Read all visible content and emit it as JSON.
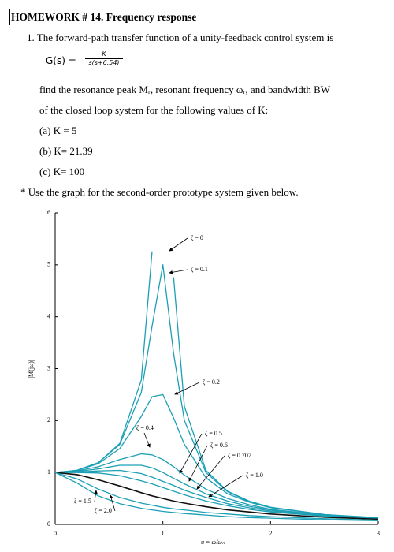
{
  "document": {
    "title": "HOMEWORK # 14. Frequency response",
    "problem": "1.  The forward-path transfer function of a unity-feedback control system is",
    "formula_lhs": "G(s) =",
    "formula_num": "K",
    "formula_den": "s(s+6.54)",
    "line1": "find the resonance peak Mᵣ, resonant frequency ωᵣ, and bandwidth BW",
    "line2": "of the closed loop system for the following values of K:",
    "case_a": "(a) K = 5",
    "case_b": "(b) K= 21.39",
    "case_c": "(c) K= 100",
    "note": "* Use the graph for the second-order prototype system given below."
  },
  "chart_data": {
    "type": "line",
    "xlabel": "u = ω/ωₙ",
    "ylabel": "|M(jω)|",
    "xlim": [
      0,
      3
    ],
    "ylim": [
      0,
      6
    ],
    "xticks": [
      0,
      1,
      2,
      3
    ],
    "yticks": [
      0,
      1,
      2,
      3,
      4,
      5,
      6
    ],
    "x": [
      0,
      0.2,
      0.4,
      0.6,
      0.8,
      0.9,
      1.0,
      1.1,
      1.2,
      1.4,
      1.6,
      1.8,
      2.0,
      2.5,
      3.0
    ],
    "series": [
      {
        "name": "ζ = 0",
        "color": "#1b9fb5",
        "values": [
          1,
          1.04,
          1.19,
          1.56,
          2.78,
          5.26,
          null,
          4.76,
          2.27,
          1.04,
          0.64,
          0.45,
          0.33,
          0.19,
          0.13
        ]
      },
      {
        "name": "ζ = 0.1",
        "color": "#1b9fb5",
        "values": [
          1,
          1.04,
          1.19,
          1.54,
          2.54,
          3.82,
          5.0,
          3.29,
          2.0,
          1.0,
          0.63,
          0.44,
          0.33,
          0.19,
          0.12
        ]
      },
      {
        "name": "ζ = 0.2",
        "color": "#1b9fb5",
        "values": [
          1,
          1.04,
          1.17,
          1.46,
          2.08,
          2.46,
          2.5,
          2.05,
          1.54,
          0.9,
          0.59,
          0.43,
          0.32,
          0.19,
          0.12
        ]
      },
      {
        "name": "ζ = 0.4",
        "color": "#1b9fb5",
        "values": [
          1,
          1.03,
          1.11,
          1.25,
          1.36,
          1.34,
          1.25,
          1.11,
          0.95,
          0.68,
          0.5,
          0.38,
          0.29,
          0.18,
          0.12
        ]
      },
      {
        "name": "ζ = 0.5",
        "color": "#1b9fb5",
        "values": [
          1,
          1.02,
          1.07,
          1.14,
          1.14,
          1.09,
          1.0,
          0.89,
          0.78,
          0.59,
          0.45,
          0.35,
          0.28,
          0.17,
          0.12
        ]
      },
      {
        "name": "ζ = 0.6",
        "color": "#1b9fb5",
        "values": [
          1,
          1.01,
          1.03,
          1.04,
          0.98,
          0.91,
          0.83,
          0.75,
          0.66,
          0.52,
          0.4,
          0.32,
          0.26,
          0.17,
          0.11
        ]
      },
      {
        "name": "ζ = 0.707",
        "color": "#1b9fb5",
        "values": [
          1,
          1.0,
          0.99,
          0.94,
          0.84,
          0.78,
          0.71,
          0.64,
          0.57,
          0.45,
          0.36,
          0.29,
          0.24,
          0.16,
          0.11
        ]
      },
      {
        "name": "ζ = 1.0",
        "color": "#111111",
        "values": [
          1,
          0.96,
          0.86,
          0.74,
          0.61,
          0.55,
          0.5,
          0.45,
          0.41,
          0.34,
          0.28,
          0.24,
          0.2,
          0.14,
          0.1
        ]
      },
      {
        "name": "ζ = 1.5",
        "color": "#1b9fb5",
        "values": [
          1,
          0.88,
          0.68,
          0.52,
          0.41,
          0.37,
          0.33,
          0.3,
          0.28,
          0.23,
          0.2,
          0.17,
          0.15,
          0.11,
          0.08
        ]
      },
      {
        "name": "ζ = 2.0",
        "color": "#1b9fb5",
        "values": [
          1,
          0.8,
          0.55,
          0.4,
          0.31,
          0.28,
          0.25,
          0.23,
          0.21,
          0.18,
          0.15,
          0.13,
          0.12,
          0.09,
          0.07
        ]
      }
    ]
  }
}
